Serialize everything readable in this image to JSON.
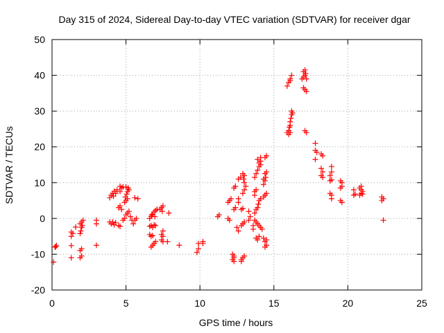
{
  "chart_data": {
    "type": "scatter",
    "title": "Day 315 of 2024, Sidereal Day-to-day VTEC variation (SDTVAR) for receiver dgar",
    "xlabel": "GPS time / hours",
    "ylabel": "SDTVAR / TECUs",
    "xlim": [
      0,
      25
    ],
    "ylim": [
      -20,
      50
    ],
    "xticks": [
      0,
      5,
      10,
      15,
      20,
      25
    ],
    "yticks": [
      -20,
      -10,
      0,
      10,
      20,
      30,
      40,
      50
    ],
    "grid": true,
    "marker": "+",
    "color": "#ff0000",
    "series": [
      {
        "name": "SDTVAR",
        "points": [
          [
            0.1,
            -12.2
          ],
          [
            0.2,
            -8.0
          ],
          [
            0.3,
            -7.6
          ],
          [
            0.25,
            -7.9
          ],
          [
            1.3,
            -11.0
          ],
          [
            1.3,
            -7.6
          ],
          [
            1.3,
            -5.0
          ],
          [
            1.3,
            -3.8
          ],
          [
            1.4,
            -4.2
          ],
          [
            1.6,
            -2.4
          ],
          [
            1.9,
            -11.0
          ],
          [
            2.0,
            -10.5
          ],
          [
            1.9,
            -9.0
          ],
          [
            2.0,
            -8.5
          ],
          [
            1.9,
            -4.2
          ],
          [
            1.95,
            -3.5
          ],
          [
            2.0,
            -2.5
          ],
          [
            1.9,
            -1.5
          ],
          [
            2.0,
            -1.0
          ],
          [
            2.1,
            -0.5
          ],
          [
            2.05,
            -2.0
          ],
          [
            3.0,
            -7.5
          ],
          [
            3.0,
            -1.5
          ],
          [
            3.0,
            -0.5
          ],
          [
            3.9,
            5.8
          ],
          [
            4.0,
            6.5
          ],
          [
            4.1,
            7.0
          ],
          [
            4.2,
            7.6
          ],
          [
            4.3,
            7.0
          ],
          [
            4.15,
            6.2
          ],
          [
            4.4,
            8.0
          ],
          [
            3.9,
            -1.0
          ],
          [
            4.0,
            -1.5
          ],
          [
            4.1,
            -1.0
          ],
          [
            4.2,
            -1.8
          ],
          [
            4.3,
            -1.2
          ],
          [
            4.5,
            -2.0
          ],
          [
            4.6,
            -2.2
          ],
          [
            4.5,
            3.0
          ],
          [
            4.6,
            3.5
          ],
          [
            4.7,
            2.5
          ],
          [
            4.6,
            7.5
          ],
          [
            4.7,
            8.5
          ],
          [
            4.8,
            8.8
          ],
          [
            4.6,
            9.0
          ],
          [
            4.8,
            -0.5
          ],
          [
            4.9,
            0.0
          ],
          [
            5.0,
            1.0
          ],
          [
            5.1,
            1.5
          ],
          [
            5.2,
            2.0
          ],
          [
            4.9,
            4.5
          ],
          [
            5.0,
            5.0
          ],
          [
            5.1,
            5.5
          ],
          [
            4.95,
            6.0
          ],
          [
            5.05,
            6.8
          ],
          [
            5.1,
            7.5
          ],
          [
            5.2,
            8.0
          ],
          [
            5.15,
            8.5
          ],
          [
            5.0,
            8.8
          ],
          [
            5.3,
            0.5
          ],
          [
            5.4,
            -0.5
          ],
          [
            5.5,
            -1.5
          ],
          [
            5.6,
            -0.5
          ],
          [
            5.7,
            0.0
          ],
          [
            5.6,
            5.8
          ],
          [
            5.8,
            5.5
          ],
          [
            6.6,
            -2.2
          ],
          [
            6.7,
            -2.0
          ],
          [
            6.8,
            -2.5
          ],
          [
            6.9,
            -1.8
          ],
          [
            7.0,
            -2.0
          ],
          [
            6.6,
            0.0
          ],
          [
            6.7,
            0.6
          ],
          [
            6.8,
            1.2
          ],
          [
            6.9,
            1.8
          ],
          [
            7.0,
            2.2
          ],
          [
            7.1,
            2.6
          ],
          [
            6.75,
            1.0
          ],
          [
            6.95,
            0.5
          ],
          [
            6.6,
            -4.5
          ],
          [
            6.7,
            -5.0
          ],
          [
            6.8,
            -4.8
          ],
          [
            6.7,
            -8.0
          ],
          [
            6.8,
            -7.5
          ],
          [
            6.9,
            -7.0
          ],
          [
            7.0,
            -6.5
          ],
          [
            7.4,
            -6.0
          ],
          [
            7.5,
            -6.5
          ],
          [
            7.5,
            -5.0
          ],
          [
            7.4,
            -4.5
          ],
          [
            7.5,
            -3.5
          ],
          [
            7.3,
            2.5
          ],
          [
            7.4,
            3.0
          ],
          [
            7.5,
            3.5
          ],
          [
            7.45,
            2.0
          ],
          [
            7.8,
            -6.5
          ],
          [
            7.9,
            1.5
          ],
          [
            8.6,
            -7.5
          ],
          [
            9.8,
            -9.5
          ],
          [
            9.9,
            -8.5
          ],
          [
            9.9,
            -7.0
          ],
          [
            10.2,
            -7.0
          ],
          [
            10.2,
            -6.5
          ],
          [
            11.2,
            0.5
          ],
          [
            11.3,
            1.0
          ],
          [
            11.9,
            4.5
          ],
          [
            12.0,
            5.0
          ],
          [
            12.1,
            5.5
          ],
          [
            11.9,
            0.0
          ],
          [
            12.0,
            -0.5
          ],
          [
            12.2,
            -11.5
          ],
          [
            12.3,
            -11.0
          ],
          [
            12.3,
            -10.5
          ],
          [
            12.2,
            -10.0
          ],
          [
            12.3,
            -12.0
          ],
          [
            12.3,
            2.5
          ],
          [
            12.4,
            3.0
          ],
          [
            12.3,
            8.5
          ],
          [
            12.4,
            9.0
          ],
          [
            12.5,
            -2.5
          ],
          [
            12.6,
            -3.5
          ],
          [
            12.6,
            4.5
          ],
          [
            12.6,
            5.5
          ],
          [
            12.6,
            11.0
          ],
          [
            12.75,
            11.5
          ],
          [
            12.8,
            -11.5
          ],
          [
            12.9,
            -11.0
          ],
          [
            13.0,
            -10.5
          ],
          [
            12.8,
            -12.0
          ],
          [
            12.8,
            -2.0
          ],
          [
            12.9,
            -1.5
          ],
          [
            13.0,
            -1.0
          ],
          [
            12.8,
            2.5
          ],
          [
            12.9,
            2.8
          ],
          [
            12.9,
            7.0
          ],
          [
            13.0,
            8.0
          ],
          [
            13.1,
            9.0
          ],
          [
            13.0,
            10.0
          ],
          [
            12.95,
            11.0
          ],
          [
            13.0,
            12.0
          ],
          [
            12.9,
            12.5
          ],
          [
            13.3,
            2.0
          ],
          [
            13.3,
            -0.5
          ],
          [
            13.4,
            0.5
          ],
          [
            13.6,
            -2.0
          ],
          [
            13.6,
            -3.0
          ],
          [
            13.7,
            -0.5
          ],
          [
            13.8,
            -1.0
          ],
          [
            13.9,
            -1.5
          ],
          [
            14.0,
            -2.0
          ],
          [
            14.1,
            -2.5
          ],
          [
            14.2,
            -3.0
          ],
          [
            13.7,
            1.5
          ],
          [
            13.8,
            2.5
          ],
          [
            13.9,
            3.0
          ],
          [
            13.95,
            4.0
          ],
          [
            14.0,
            5.0
          ],
          [
            14.1,
            5.5
          ],
          [
            13.7,
            6.5
          ],
          [
            13.7,
            7.5
          ],
          [
            13.8,
            8.0
          ],
          [
            13.7,
            11.5
          ],
          [
            13.8,
            12.5
          ],
          [
            13.9,
            13.5
          ],
          [
            14.0,
            14.5
          ],
          [
            14.1,
            15.0
          ],
          [
            14.0,
            15.5
          ],
          [
            14.1,
            16.0
          ],
          [
            13.9,
            16.5
          ],
          [
            14.1,
            17.0
          ],
          [
            13.8,
            -5.5
          ],
          [
            13.9,
            -6.0
          ],
          [
            14.0,
            -5.0
          ],
          [
            14.3,
            -5.5
          ],
          [
            14.4,
            -6.5
          ],
          [
            14.5,
            -7.5
          ],
          [
            14.4,
            -8.0
          ],
          [
            14.5,
            -6.0
          ],
          [
            14.3,
            6.0
          ],
          [
            14.4,
            6.5
          ],
          [
            14.5,
            7.0
          ],
          [
            14.3,
            9.5
          ],
          [
            14.4,
            10.5
          ],
          [
            14.45,
            11.5
          ],
          [
            14.4,
            12.5
          ],
          [
            14.5,
            13.0
          ],
          [
            14.3,
            11.0
          ],
          [
            14.4,
            17.0
          ],
          [
            14.5,
            17.5
          ],
          [
            15.9,
            37.0
          ],
          [
            16.0,
            38.0
          ],
          [
            16.1,
            39.0
          ],
          [
            16.2,
            40.0
          ],
          [
            16.1,
            38.5
          ],
          [
            15.9,
            24.0
          ],
          [
            16.0,
            24.5
          ],
          [
            16.05,
            25.5
          ],
          [
            16.1,
            26.0
          ],
          [
            16.1,
            27.0
          ],
          [
            16.15,
            28.0
          ],
          [
            16.2,
            29.0
          ],
          [
            16.25,
            29.5
          ],
          [
            16.2,
            30.0
          ],
          [
            16.0,
            23.5
          ],
          [
            16.1,
            24.0
          ],
          [
            16.9,
            39.0
          ],
          [
            17.0,
            39.5
          ],
          [
            17.1,
            40.0
          ],
          [
            17.15,
            40.5
          ],
          [
            17.0,
            41.0
          ],
          [
            17.1,
            41.5
          ],
          [
            17.2,
            39.0
          ],
          [
            17.0,
            36.5
          ],
          [
            17.1,
            36.0
          ],
          [
            17.2,
            35.5
          ],
          [
            17.1,
            24.5
          ],
          [
            17.2,
            24.0
          ],
          [
            17.8,
            21.0
          ],
          [
            17.8,
            19.0
          ],
          [
            17.9,
            18.5
          ],
          [
            17.8,
            16.5
          ],
          [
            18.2,
            18.0
          ],
          [
            18.3,
            17.5
          ],
          [
            18.2,
            14.0
          ],
          [
            18.3,
            13.0
          ],
          [
            18.2,
            12.0
          ],
          [
            18.3,
            11.5
          ],
          [
            18.9,
            14.5
          ],
          [
            18.9,
            13.0
          ],
          [
            18.8,
            12.0
          ],
          [
            18.8,
            10.5
          ],
          [
            18.9,
            10.8
          ],
          [
            18.8,
            7.0
          ],
          [
            18.9,
            6.5
          ],
          [
            18.9,
            5.5
          ],
          [
            19.5,
            10.5
          ],
          [
            19.6,
            10.0
          ],
          [
            19.5,
            8.5
          ],
          [
            19.6,
            9.0
          ],
          [
            19.5,
            5.0
          ],
          [
            19.6,
            4.5
          ],
          [
            20.4,
            8.0
          ],
          [
            20.4,
            6.5
          ],
          [
            20.5,
            6.8
          ],
          [
            20.8,
            8.5
          ],
          [
            20.9,
            8.0
          ],
          [
            21.0,
            7.5
          ],
          [
            20.9,
            7.0
          ],
          [
            20.8,
            6.5
          ],
          [
            21.0,
            6.8
          ],
          [
            20.9,
            9.0
          ],
          [
            22.3,
            6.0
          ],
          [
            22.4,
            5.5
          ],
          [
            22.3,
            5.0
          ],
          [
            22.4,
            -0.5
          ]
        ]
      }
    ]
  }
}
